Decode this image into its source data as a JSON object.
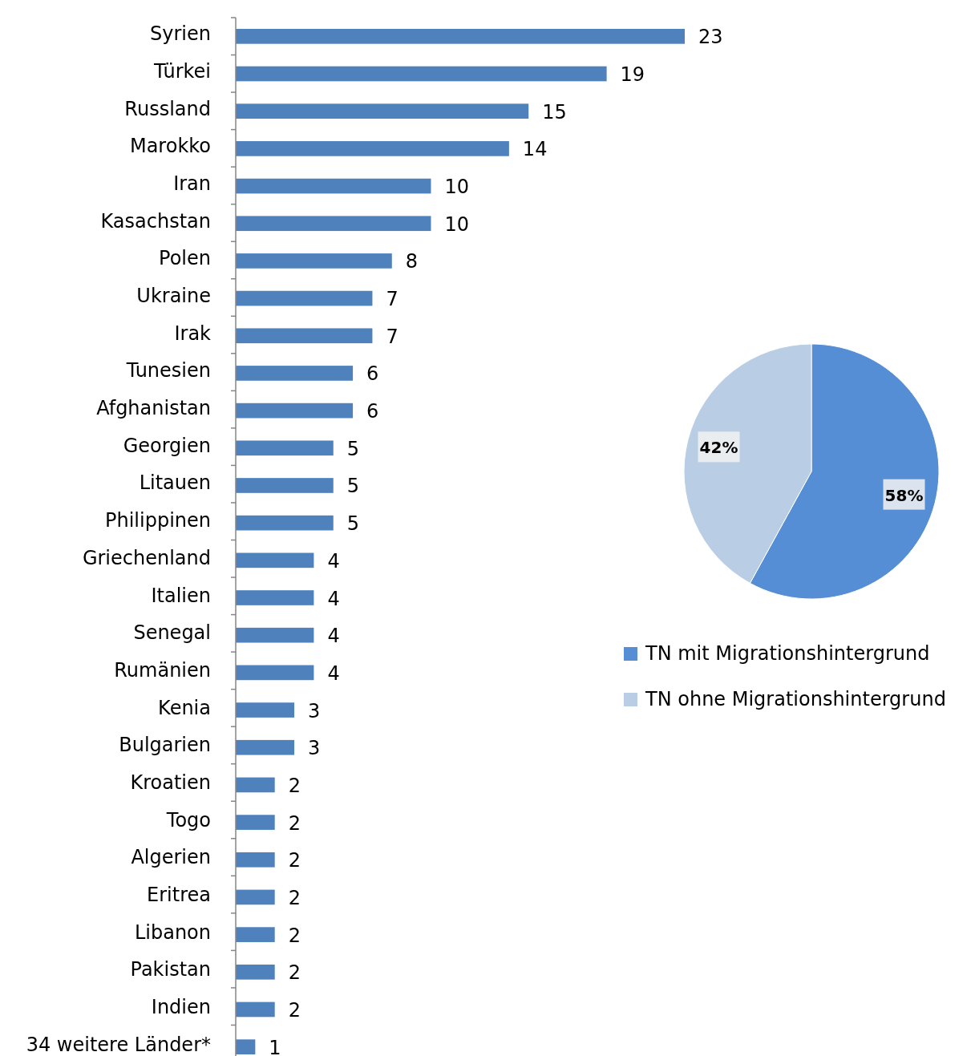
{
  "chart_data": [
    {
      "type": "bar",
      "orientation": "horizontal",
      "categories": [
        "Syrien",
        "Türkei",
        "Russland",
        "Marokko",
        "Iran",
        "Kasachstan",
        "Polen",
        "Ukraine",
        "Irak",
        "Tunesien",
        "Afghanistan",
        "Georgien",
        "Litauen",
        "Philippinen",
        "Griechenland",
        "Italien",
        "Senegal",
        "Rumänien",
        "Kenia",
        "Bulgarien",
        "Kroatien",
        "Togo",
        "Algerien",
        "Eritrea",
        "Libanon",
        "Pakistan",
        "Indien",
        "34 weitere Länder*"
      ],
      "values": [
        23,
        19,
        15,
        14,
        10,
        10,
        8,
        7,
        7,
        6,
        6,
        5,
        5,
        5,
        4,
        4,
        4,
        4,
        3,
        3,
        2,
        2,
        2,
        2,
        2,
        2,
        2,
        1
      ],
      "color": "#4f81bd",
      "data_labels": true
    },
    {
      "type": "pie",
      "categories": [
        "TN mit Migrationshintergrund",
        "TN ohne Migrationshintergrund"
      ],
      "values": [
        58,
        42
      ],
      "colors": [
        "#558ed5",
        "#b9cde5"
      ],
      "value_labels": [
        "58%",
        "42%"
      ],
      "legend": "bottom"
    }
  ]
}
